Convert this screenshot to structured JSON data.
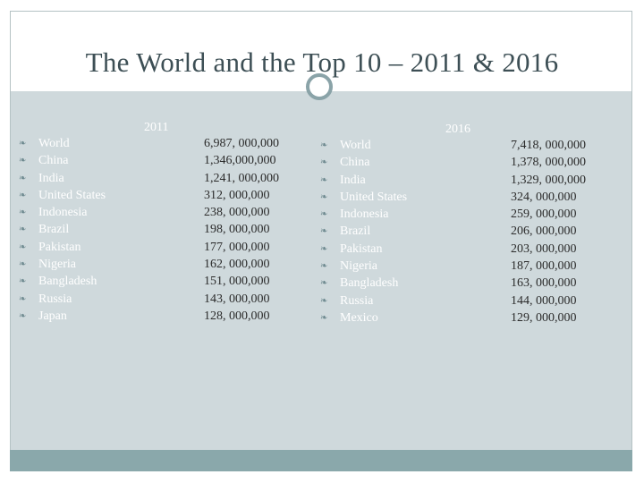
{
  "title": "The World and the Top 10 – 2011 & 2016",
  "col_2011": {
    "header": "2011",
    "names": [
      "World",
      "China",
      "India",
      "United States",
      "Indonesia",
      "Brazil",
      "Pakistan",
      "Nigeria",
      "Bangladesh",
      "Russia",
      "Japan"
    ],
    "values": [
      "6,987, 000,000",
      "1,346,000,000",
      "1,241, 000,000",
      "312, 000,000",
      "238, 000,000",
      "198, 000,000",
      "177, 000,000",
      "162, 000,000",
      "151, 000,000",
      "143, 000,000",
      "128, 000,000"
    ]
  },
  "col_2016": {
    "header": "2016",
    "names": [
      "World",
      "China",
      "India",
      "United States",
      "Indonesia",
      "Brazil",
      "Pakistan",
      "Nigeria",
      "Bangladesh",
      "Russia",
      "Mexico"
    ],
    "values": [
      "7,418, 000,000",
      "1,378, 000,000",
      "1,329, 000,000",
      "324, 000,000",
      "259, 000,000",
      "206, 000,000",
      "203, 000,000",
      "187, 000,000",
      "163, 000,000",
      "144, 000,000",
      "129, 000,000"
    ]
  },
  "bullet_icon": "leaf-bullet-icon",
  "colors": {
    "background": "#cfd9dc",
    "title_text": "#3d4f55",
    "footer_bar": "#8aa8ab",
    "value_text": "#2b2b2b",
    "name_text": "#ffffff"
  }
}
